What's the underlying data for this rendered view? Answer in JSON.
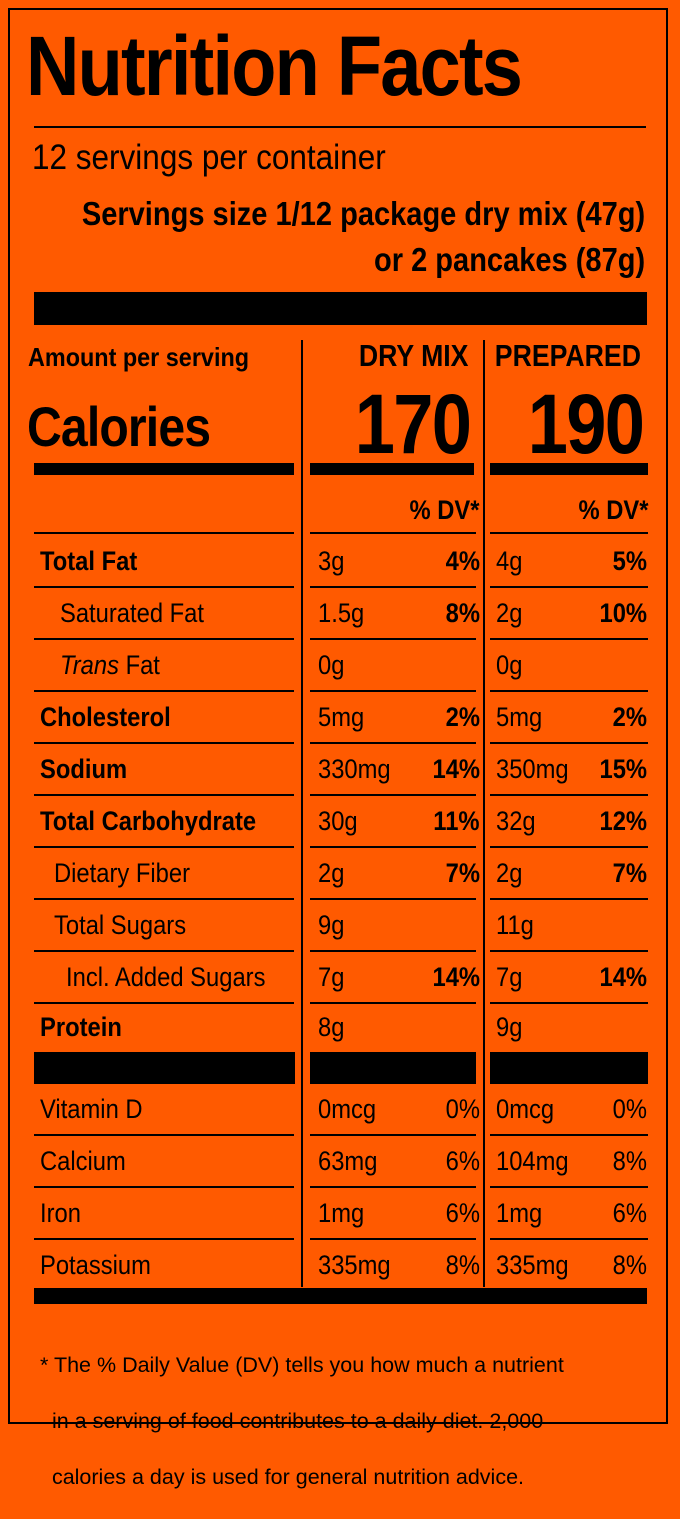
{
  "title": "Nutrition Facts",
  "servings_per_container": "12 servings per container",
  "serving_size_line1": "Servings size 1/12 package dry mix (47g)",
  "serving_size_line2": "or 2 pancakes (87g)",
  "amount_per_serving": "Amount per serving",
  "calories_label": "Calories",
  "columns": {
    "dry_mix": {
      "header": "DRY MIX",
      "calories": "170",
      "dv_header": "% DV*"
    },
    "prepared": {
      "header": "PREPARED",
      "calories": "190",
      "dv_header": "% DV*"
    }
  },
  "nutrients": [
    {
      "label": "Total Fat",
      "dry_amount": "3g",
      "dry_dv": "4%",
      "prep_amount": "4g",
      "prep_dv": "5%"
    },
    {
      "label": "Saturated Fat",
      "dry_amount": "1.5g",
      "dry_dv": "8%",
      "prep_amount": "2g",
      "prep_dv": "10%"
    },
    {
      "label_italic": "Trans",
      "label_rest": " Fat",
      "dry_amount": "0g",
      "dry_dv": "",
      "prep_amount": "0g",
      "prep_dv": ""
    },
    {
      "label": "Cholesterol",
      "dry_amount": "5mg",
      "dry_dv": "2%",
      "prep_amount": "5mg",
      "prep_dv": "2%"
    },
    {
      "label": "Sodium",
      "dry_amount": "330mg",
      "dry_dv": "14%",
      "prep_amount": "350mg",
      "prep_dv": "15%"
    },
    {
      "label": "Total Carbohydrate",
      "dry_amount": "30g",
      "dry_dv": "11%",
      "prep_amount": "32g",
      "prep_dv": "12%"
    },
    {
      "label": "Dietary Fiber",
      "dry_amount": "2g",
      "dry_dv": "7%",
      "prep_amount": "2g",
      "prep_dv": "7%"
    },
    {
      "label": "Total Sugars",
      "dry_amount": "9g",
      "dry_dv": "",
      "prep_amount": "11g",
      "prep_dv": ""
    },
    {
      "label": "Incl. Added Sugars",
      "dry_amount": "7g",
      "dry_dv": "14%",
      "prep_amount": "7g",
      "prep_dv": "14%"
    },
    {
      "label": "Protein",
      "dry_amount": "8g",
      "dry_dv": "",
      "prep_amount": "9g",
      "prep_dv": ""
    }
  ],
  "vitamins": [
    {
      "label": "Vitamin D",
      "dry_amount": "0mcg",
      "dry_dv": "0%",
      "prep_amount": "0mcg",
      "prep_dv": "0%"
    },
    {
      "label": "Calcium",
      "dry_amount": "63mg",
      "dry_dv": "6%",
      "prep_amount": "104mg",
      "prep_dv": "8%"
    },
    {
      "label": "Iron",
      "dry_amount": "1mg",
      "dry_dv": "6%",
      "prep_amount": "1mg",
      "prep_dv": "6%"
    },
    {
      "label": "Potassium",
      "dry_amount": "335mg",
      "dry_dv": "8%",
      "prep_amount": "335mg",
      "prep_dv": "8%"
    }
  ],
  "footnote": {
    "line1": "* The % Daily Value (DV) tells you how much a nutrient",
    "line2": "  in a serving of food contributes to a daily diet. 2,000",
    "line3": "  calories a day is used for general nutrition advice."
  },
  "colors": {
    "background": "#ff5a00",
    "ink": "#000000"
  }
}
